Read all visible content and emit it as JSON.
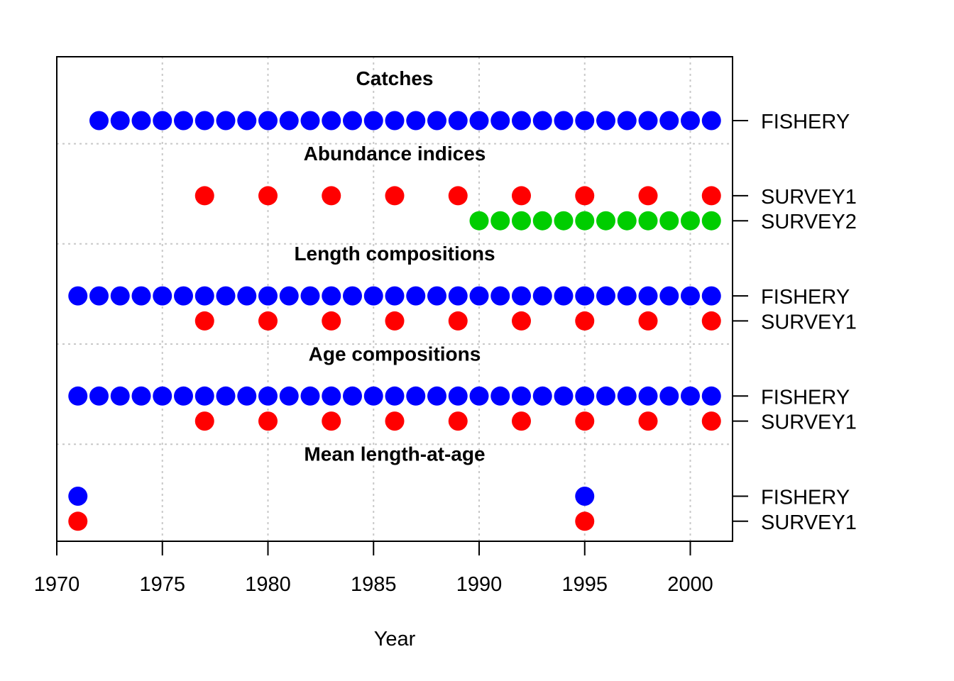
{
  "chart_data": {
    "type": "scatter",
    "xlabel": "Year",
    "xlim": [
      1970,
      2002
    ],
    "xticks": [
      1970,
      1975,
      1980,
      1985,
      1990,
      1995,
      2000
    ],
    "grid": true,
    "colors": {
      "FISHERY": "#0000ff",
      "SURVEY1": "#ff0000",
      "SURVEY2": "#00cd00"
    },
    "sections": [
      {
        "title": "Catches",
        "rows": [
          {
            "label": "FISHERY",
            "color": "#0000ff",
            "years": [
              1972,
              1973,
              1974,
              1975,
              1976,
              1977,
              1978,
              1979,
              1980,
              1981,
              1982,
              1983,
              1984,
              1985,
              1986,
              1987,
              1988,
              1989,
              1990,
              1991,
              1992,
              1993,
              1994,
              1995,
              1996,
              1997,
              1998,
              1999,
              2000,
              2001
            ]
          }
        ]
      },
      {
        "title": "Abundance indices",
        "rows": [
          {
            "label": "SURVEY1",
            "color": "#ff0000",
            "years": [
              1977,
              1980,
              1983,
              1986,
              1989,
              1992,
              1995,
              1998,
              2001
            ]
          },
          {
            "label": "SURVEY2",
            "color": "#00cd00",
            "years": [
              1990,
              1991,
              1992,
              1993,
              1994,
              1995,
              1996,
              1997,
              1998,
              1999,
              2000,
              2001
            ]
          }
        ]
      },
      {
        "title": "Length compositions",
        "rows": [
          {
            "label": "FISHERY",
            "color": "#0000ff",
            "years": [
              1971,
              1972,
              1973,
              1974,
              1975,
              1976,
              1977,
              1978,
              1979,
              1980,
              1981,
              1982,
              1983,
              1984,
              1985,
              1986,
              1987,
              1988,
              1989,
              1990,
              1991,
              1992,
              1993,
              1994,
              1995,
              1996,
              1997,
              1998,
              1999,
              2000,
              2001
            ]
          },
          {
            "label": "SURVEY1",
            "color": "#ff0000",
            "years": [
              1977,
              1980,
              1983,
              1986,
              1989,
              1992,
              1995,
              1998,
              2001
            ]
          }
        ]
      },
      {
        "title": "Age compositions",
        "rows": [
          {
            "label": "FISHERY",
            "color": "#0000ff",
            "years": [
              1971,
              1972,
              1973,
              1974,
              1975,
              1976,
              1977,
              1978,
              1979,
              1980,
              1981,
              1982,
              1983,
              1984,
              1985,
              1986,
              1987,
              1988,
              1989,
              1990,
              1991,
              1992,
              1993,
              1994,
              1995,
              1996,
              1997,
              1998,
              1999,
              2000,
              2001
            ]
          },
          {
            "label": "SURVEY1",
            "color": "#ff0000",
            "years": [
              1977,
              1980,
              1983,
              1986,
              1989,
              1992,
              1995,
              1998,
              2001
            ]
          }
        ]
      },
      {
        "title": "Mean length-at-age",
        "rows": [
          {
            "label": "FISHERY",
            "color": "#0000ff",
            "years": [
              1971,
              1995
            ]
          },
          {
            "label": "SURVEY1",
            "color": "#ff0000",
            "years": [
              1971,
              1995
            ]
          }
        ]
      }
    ]
  }
}
